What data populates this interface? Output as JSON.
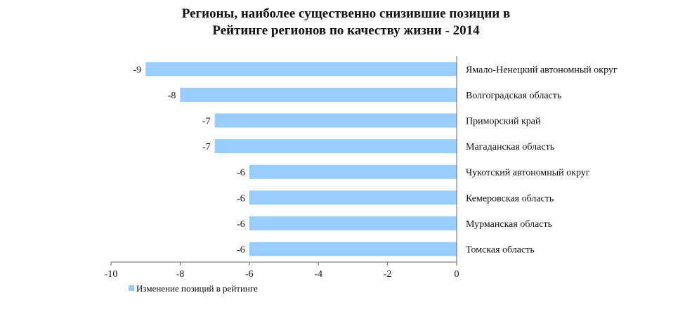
{
  "chart_data": {
    "type": "bar",
    "orientation": "horizontal",
    "title_lines": [
      "Регионы, наиболее существенно снизившие позиции в",
      "Рейтинге регионов по качеству жизни - 2014"
    ],
    "categories": [
      "Ямало-Ненецкий автономный округ",
      "Волгоградская область",
      "Приморский край",
      "Магаданская область",
      "Чукотский автономный округ",
      "Кемеровская область",
      "Мурманская область",
      "Томская область"
    ],
    "series": [
      {
        "name": "Изменение позиций в рейтинге",
        "values": [
          -9,
          -8,
          -7,
          -7,
          -6,
          -6,
          -6,
          -6
        ],
        "labels": [
          "-9",
          "-8",
          "-7",
          "-7",
          "-6",
          "-6",
          "-6",
          "-6"
        ]
      }
    ],
    "x_ticks": [
      -10,
      -8,
      -6,
      -4,
      -2,
      0
    ],
    "x_tick_labels": [
      "-10",
      "-8",
      "-6",
      "-4",
      "-2",
      "0"
    ],
    "xlim": [
      -10,
      0
    ],
    "grid": false,
    "legend_position": "bottom-left",
    "colors": {
      "bar": "#99ccff",
      "axis": "#666666",
      "text": "#111111"
    }
  }
}
